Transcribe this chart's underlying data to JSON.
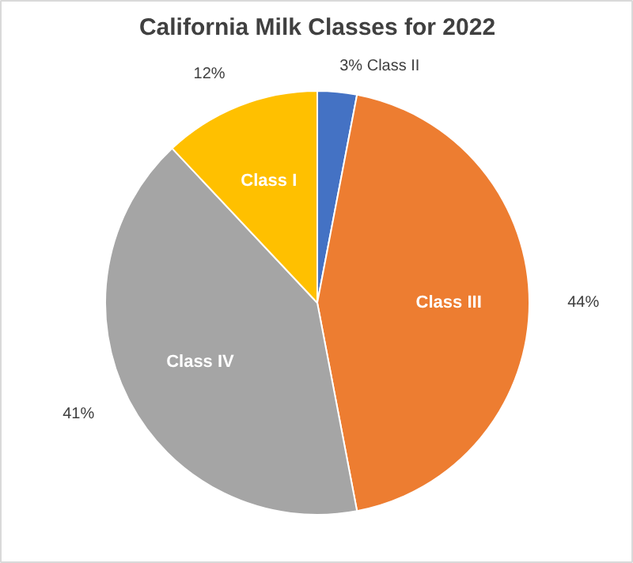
{
  "chart_data": {
    "type": "pie",
    "title": "California Milk Classes for 2022",
    "categories": [
      "Class II",
      "Class III",
      "Class IV",
      "Class I"
    ],
    "values": [
      3,
      44,
      41,
      12
    ],
    "colors": [
      "#4472c4",
      "#ed7d31",
      "#a5a5a5",
      "#ffc000"
    ],
    "value_labels": [
      "3%",
      "44%",
      "41%",
      "12%"
    ]
  }
}
